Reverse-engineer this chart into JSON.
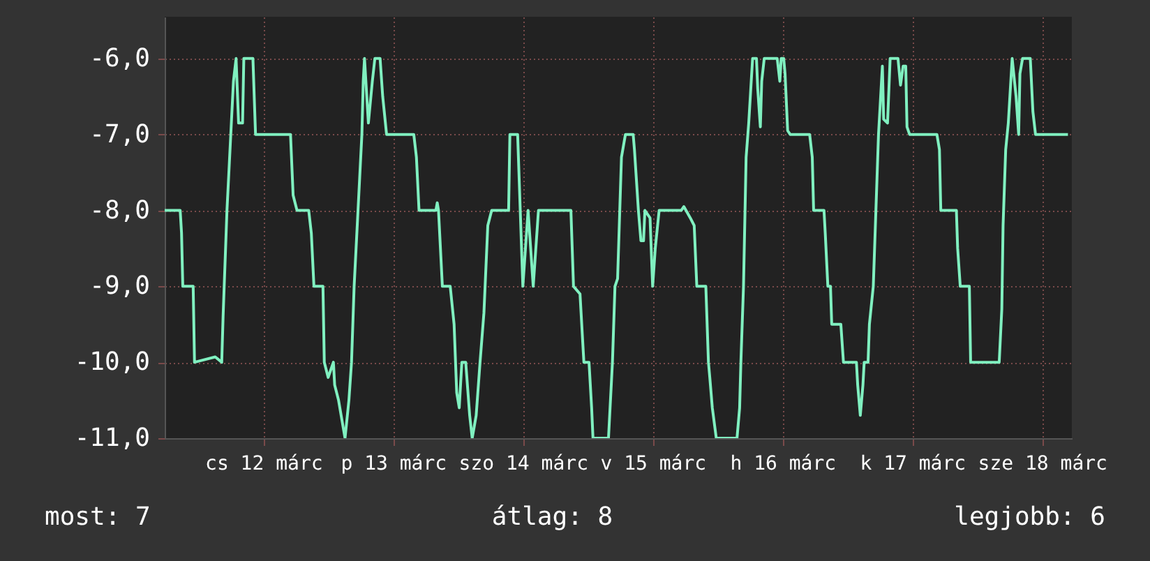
{
  "chart_data": {
    "type": "line",
    "grid": true,
    "xlim": [
      "--03-11T17:46",
      "--03-18T17:31"
    ],
    "ylim": [
      -11,
      -5.45
    ],
    "xticks": [
      {
        "value": "--03-12T12:00",
        "label": "cs 12 márc"
      },
      {
        "value": "--03-13T12:00",
        "label": "p 13 márc"
      },
      {
        "value": "--03-14T12:00",
        "label": "szo 14 márc"
      },
      {
        "value": "--03-15T12:00",
        "label": "v 15 márc"
      },
      {
        "value": "--03-16T12:00",
        "label": "h 16 márc"
      },
      {
        "value": "--03-17T12:00",
        "label": "k 17 márc"
      },
      {
        "value": "--03-18T12:00",
        "label": "sze 18 márc"
      }
    ],
    "yticks": [
      {
        "value": -11,
        "label": "-11,0"
      },
      {
        "value": -10,
        "label": "-10,0"
      },
      {
        "value": -9,
        "label": "-9,0"
      },
      {
        "value": -8,
        "label": "-8,0"
      },
      {
        "value": -7,
        "label": "-7,0"
      },
      {
        "value": -6,
        "label": "-6,0"
      }
    ],
    "annotations": [
      "most: 7",
      "átlag: 8",
      "legjobb: 6"
    ],
    "series": [
      {
        "color": "#80f0c0",
        "x": [
          "--03-11T17:46",
          "--03-11T20:38",
          "--03-11T20:53",
          "--03-11T21:07",
          "--03-11T23:02",
          "--03-11T23:17",
          "--03-12T03:07",
          "--03-12T04:19",
          "--03-12T04:34",
          "--03-12T05:17",
          "--03-12T06:29",
          "--03-12T06:58",
          "--03-12T07:26",
          "--03-12T08:10",
          "--03-12T08:24",
          "--03-12T10:05",
          "--03-12T10:34",
          "--03-12T17:02",
          "--03-12T17:31",
          "--03-12T18:14",
          "--03-12T20:24",
          "--03-12T20:53",
          "--03-12T21:22",
          "--03-12T23:02",
          "--03-12T23:17",
          "--03-13T00:00",
          "--03-13T00:58",
          "--03-13T01:12",
          "--03-13T01:55",
          "--03-13T03:07",
          "--03-13T03:50",
          "--03-13T04:19",
          "--03-13T04:48",
          "--03-13T05:31",
          "--03-13T06:14",
          "--03-13T06:29",
          "--03-13T06:43",
          "--03-13T07:26",
          "--03-13T08:10",
          "--03-13T08:38",
          "--03-13T09:36",
          "--03-13T10:05",
          "--03-13T10:48",
          "--03-13T15:50",
          "--03-13T16:19",
          "--03-13T16:48",
          "--03-13T19:55",
          "--03-13T20:10",
          "--03-13T20:24",
          "--03-13T21:07",
          "--03-13T21:50",
          "--03-13T22:34",
          "--03-13T23:17",
          "--03-13T23:46",
          "--03-14T00:14",
          "--03-14T00:43",
          "--03-14T01:26",
          "--03-14T02:10",
          "--03-14T02:38",
          "--03-14T03:22",
          "--03-14T04:05",
          "--03-14T04:48",
          "--03-14T05:31",
          "--03-14T06:14",
          "--03-14T09:22",
          "--03-14T09:36",
          "--03-14T11:02",
          "--03-14T11:31",
          "--03-14T12:00",
          "--03-14T12:29",
          "--03-14T12:58",
          "--03-14T13:55",
          "--03-14T14:53",
          "--03-14T20:53",
          "--03-14T21:22",
          "--03-14T22:34",
          "--03-14T23:17",
          "--03-15T00:14",
          "--03-15T00:43",
          "--03-15T00:58",
          "--03-15T03:50",
          "--03-15T04:34",
          "--03-15T05:02",
          "--03-15T05:31",
          "--03-15T06:14",
          "--03-15T06:58",
          "--03-15T08:24",
          "--03-15T08:38",
          "--03-15T09:22",
          "--03-15T09:50",
          "--03-15T10:19",
          "--03-15T10:34",
          "--03-15T11:31",
          "--03-15T12:00",
          "--03-15T12:29",
          "--03-15T13:12",
          "--03-15T17:17",
          "--03-15T17:46",
          "--03-15T18:58",
          "--03-15T19:41",
          "--03-15T20:10",
          "--03-15T21:50",
          "--03-15T22:19",
          "--03-15T22:34",
          "--03-15T23:02",
          "--03-15T23:46",
          "--03-16T03:36",
          "--03-16T04:05",
          "--03-16T04:19",
          "--03-16T04:48",
          "--03-16T05:17",
          "--03-16T05:46",
          "--03-16T06:29",
          "--03-16T07:12",
          "--03-16T07:26",
          "--03-16T07:55",
          "--03-16T08:10",
          "--03-16T08:38",
          "--03-16T11:02",
          "--03-16T11:31",
          "--03-16T11:46",
          "--03-16T12:14",
          "--03-16T12:29",
          "--03-16T12:58",
          "--03-16T13:26",
          "--03-16T17:02",
          "--03-16T17:31",
          "--03-16T17:46",
          "--03-16T19:41",
          "--03-16T19:55",
          "--03-16T20:24",
          "--03-16T20:53",
          "--03-16T21:07",
          "--03-16T22:48",
          "--03-16T23:17",
          "--03-17T01:41",
          "--03-17T01:55",
          "--03-17T02:24",
          "--03-17T02:53",
          "--03-17T03:07",
          "--03-17T03:50",
          "--03-17T04:05",
          "--03-17T04:48",
          "--03-17T05:17",
          "--03-17T05:46",
          "--03-17T06:29",
          "--03-17T06:43",
          "--03-17T07:26",
          "--03-17T07:55",
          "--03-17T09:22",
          "--03-17T09:50",
          "--03-17T10:19",
          "--03-17T10:48",
          "--03-17T11:02",
          "--03-17T11:31",
          "--03-17T16:34",
          "--03-17T17:02",
          "--03-17T17:17",
          "--03-17T20:10",
          "--03-17T20:24",
          "--03-17T20:53",
          "--03-17T22:34",
          "--03-17T22:48",
          "--03-18T04:05",
          "--03-18T04:34",
          "--03-18T04:48",
          "--03-18T05:17",
          "--03-18T05:46",
          "--03-18T06:29",
          "--03-18T07:12",
          "--03-18T07:41",
          "--03-18T07:55",
          "--03-18T08:24",
          "--03-18T09:50",
          "--03-18T10:19",
          "--03-18T10:48",
          "--03-18T16:48"
        ],
        "values": [
          -8,
          -8,
          -8.3,
          -9,
          -9,
          -10,
          -9.93,
          -10,
          -9.4,
          -8,
          -6.3,
          -6,
          -6.85,
          -6.85,
          -6,
          -6,
          -7,
          -7,
          -7.8,
          -8,
          -8,
          -8.3,
          -9,
          -9,
          -10,
          -10.2,
          -10,
          -10.3,
          -10.5,
          -11,
          -10.5,
          -10,
          -9,
          -8,
          -7,
          -6.3,
          -6,
          -6.85,
          -6.3,
          -6,
          -6,
          -6.5,
          -7,
          -7,
          -7.3,
          -8,
          -8,
          -7.9,
          -8,
          -9,
          -9,
          -9,
          -9.5,
          -10.4,
          -10.6,
          -10,
          -10,
          -10.7,
          -11,
          -10.7,
          -10,
          -9.35,
          -8.2,
          -8,
          -8,
          -7,
          -7,
          -8,
          -9,
          -8.5,
          -8,
          -9,
          -8,
          -8,
          -9,
          -9.1,
          -10,
          -10,
          -10.6,
          -11,
          -11,
          -10,
          -9,
          -8.9,
          -7.3,
          -7,
          -7,
          -7.2,
          -8,
          -8.4,
          -8.4,
          -8,
          -8.1,
          -9,
          -8.5,
          -8,
          -8,
          -7.95,
          -8.1,
          -8.2,
          -9,
          -9,
          -10,
          -10.2,
          -10.6,
          -11,
          -11,
          -10.6,
          -10,
          -9,
          -7.3,
          -6.85,
          -6,
          -6,
          -6.4,
          -6.9,
          -6.3,
          -6,
          -6,
          -6.3,
          -6,
          -6,
          -6.2,
          -6.95,
          -7,
          -7,
          -7.3,
          -8,
          -8,
          -8.3,
          -9,
          -9,
          -9.5,
          -9.5,
          -10,
          -10,
          -10.3,
          -10.7,
          -10.3,
          -10,
          -10,
          -9.5,
          -9,
          -8,
          -7,
          -6.1,
          -6.8,
          -6.85,
          -6,
          -6,
          -6.35,
          -6.1,
          -6.1,
          -6.9,
          -7,
          -7,
          -7.2,
          -8,
          -8,
          -8.5,
          -9,
          -9,
          -10,
          -10,
          -9.3,
          -8.2,
          -7.2,
          -6.85,
          -6,
          -6.5,
          -7,
          -6.2,
          -6,
          -6,
          -6.7,
          -7,
          -7
        ]
      }
    ]
  }
}
